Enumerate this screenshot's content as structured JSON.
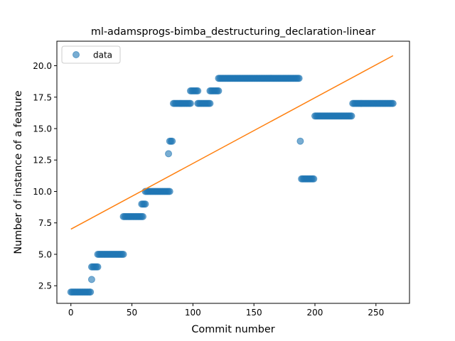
{
  "chart_data": {
    "type": "scatter",
    "title": "ml-adamsprogs-bimba_destructuring_declaration-linear",
    "xlabel": "Commit number",
    "ylabel": "Number of instance of a feature",
    "xlim": [
      -11.5,
      277.5
    ],
    "ylim": [
      1.1,
      21.95
    ],
    "xticks": [
      0,
      50,
      100,
      150,
      200,
      250
    ],
    "yticks": [
      2.5,
      5.0,
      7.5,
      10.0,
      12.5,
      15.0,
      17.5,
      20.0
    ],
    "xtick_labels": [
      "0",
      "50",
      "100",
      "150",
      "200",
      "250"
    ],
    "ytick_labels": [
      "2.5",
      "5.0",
      "7.5",
      "10.0",
      "12.5",
      "15.0",
      "17.5",
      "20.0"
    ],
    "legend": {
      "entries": [
        "data"
      ],
      "position": "upper left"
    },
    "colors": {
      "data": "#1f77b4",
      "fit": "#ff7f0e"
    },
    "segments": [
      {
        "x_start": 0,
        "x_end": 16,
        "y": 2
      },
      {
        "x_start": 17,
        "x_end": 17,
        "y": 3
      },
      {
        "x_start": 17,
        "x_end": 22,
        "y": 4
      },
      {
        "x_start": 22,
        "x_end": 43,
        "y": 5
      },
      {
        "x_start": 43,
        "x_end": 59,
        "y": 8
      },
      {
        "x_start": 58,
        "x_end": 61,
        "y": 9
      },
      {
        "x_start": 61,
        "x_end": 81,
        "y": 10
      },
      {
        "x_start": 80,
        "x_end": 80,
        "y": 13
      },
      {
        "x_start": 81,
        "x_end": 83,
        "y": 14
      },
      {
        "x_start": 84,
        "x_end": 98,
        "y": 17
      },
      {
        "x_start": 98,
        "x_end": 104,
        "y": 18
      },
      {
        "x_start": 104,
        "x_end": 114,
        "y": 17
      },
      {
        "x_start": 114,
        "x_end": 121,
        "y": 18
      },
      {
        "x_start": 121,
        "x_end": 187,
        "y": 19
      },
      {
        "x_start": 188,
        "x_end": 188,
        "y": 14
      },
      {
        "x_start": 189,
        "x_end": 199,
        "y": 11
      },
      {
        "x_start": 200,
        "x_end": 230,
        "y": 16
      },
      {
        "x_start": 231,
        "x_end": 264,
        "y": 17
      }
    ],
    "fit_line": {
      "x": [
        0,
        264
      ],
      "y": [
        7.0,
        20.8
      ]
    }
  }
}
